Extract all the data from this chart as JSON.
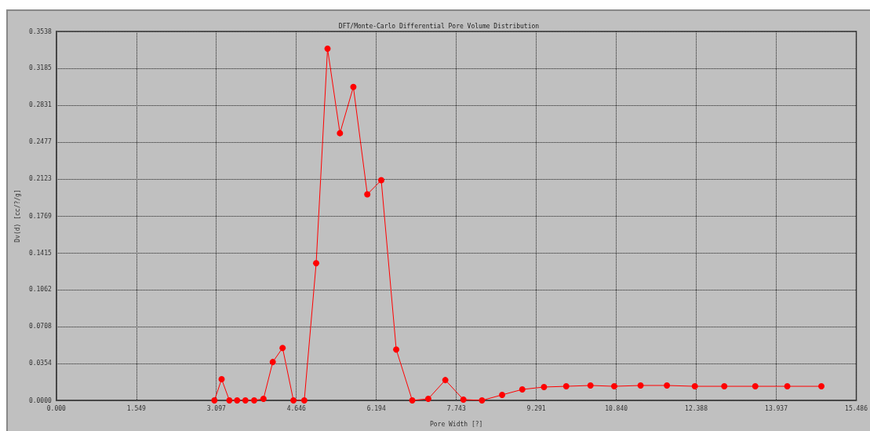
{
  "chart_data": {
    "type": "line",
    "title": "DFT/Monte-Carlo Differential Pore Volume Distribution",
    "xlabel": "Pore Width [?]",
    "ylabel": "Dv(d) [cc/?/g]",
    "x": [
      3.06,
      3.2,
      3.35,
      3.5,
      3.66,
      3.83,
      4.01,
      4.19,
      4.38,
      4.59,
      4.8,
      5.03,
      5.25,
      5.49,
      5.75,
      6.02,
      6.29,
      6.58,
      6.89,
      7.2,
      7.53,
      7.88,
      8.24,
      8.63,
      9.02,
      9.44,
      9.87,
      10.34,
      10.8,
      11.31,
      11.82,
      12.36,
      12.93,
      13.53,
      14.15,
      14.81
    ],
    "series": [
      {
        "color": "#ff0000",
        "values": [
          0,
          0.0203,
          0,
          0,
          0,
          0,
          0.0015,
          0.0368,
          0.0503,
          0,
          0,
          0.1315,
          0.3373,
          0.2562,
          0.3005,
          0.1976,
          0.2111,
          0.0488,
          0,
          0.0015,
          0.0195,
          0.0008,
          0,
          0.0053,
          0.0105,
          0.0128,
          0.0135,
          0.0143,
          0.0135,
          0.0143,
          0.0143,
          0.0135,
          0.0135,
          0.0135,
          0.0135,
          0.0135
        ]
      }
    ],
    "xlim": [
      0,
      15.486
    ],
    "xticks": [
      {
        "value": 0,
        "label": "0.000"
      },
      1.549,
      3.097,
      4.646,
      6.194,
      7.743,
      9.291,
      {
        "value": 10.84,
        "label": "10.840"
      },
      12.388,
      13.937,
      {
        "value": 15.486,
        "label": "15.486"
      }
    ],
    "ylim": [
      0,
      0.3538
    ],
    "yticks": [
      {
        "value": 0,
        "label": "0.0000"
      },
      0.0354,
      {
        "value": 0.0708,
        "label": "0.0708"
      },
      0.1062,
      0.1415,
      0.1769,
      0.2123,
      0.2477,
      0.2831,
      0.3185,
      0.3538
    ],
    "grid": true,
    "marker": "circle",
    "line_style": "solid"
  }
}
